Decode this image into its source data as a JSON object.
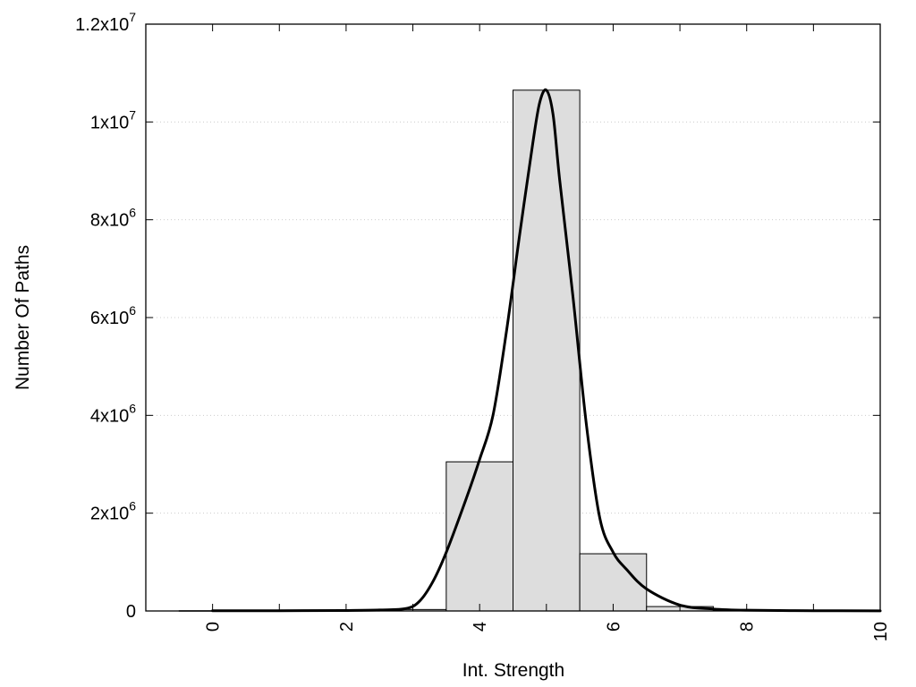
{
  "chart_data": {
    "type": "bar",
    "title": "",
    "xlabel": "Int. Strength",
    "ylabel": "Number Of Paths",
    "xlim": [
      -1,
      10
    ],
    "ylim": [
      0,
      12000000
    ],
    "grid": {
      "y": true,
      "x": false
    },
    "x_ticks": [
      {
        "value": 0,
        "label": "0"
      },
      {
        "value": 2,
        "label": "2"
      },
      {
        "value": 4,
        "label": "4"
      },
      {
        "value": 6,
        "label": "6"
      },
      {
        "value": 8,
        "label": "8"
      },
      {
        "value": 10,
        "label": "10"
      }
    ],
    "y_ticks": [
      {
        "value": 0,
        "base": "0",
        "exp": ""
      },
      {
        "value": 2000000,
        "base": "2x10",
        "exp": "6"
      },
      {
        "value": 4000000,
        "base": "4x10",
        "exp": "6"
      },
      {
        "value": 6000000,
        "base": "6x10",
        "exp": "6"
      },
      {
        "value": 8000000,
        "base": "8x10",
        "exp": "6"
      },
      {
        "value": 10000000,
        "base": "1x10",
        "exp": "7"
      },
      {
        "value": 12000000,
        "base": "1.2x10",
        "exp": "7"
      }
    ],
    "bar_width": 1,
    "bars": [
      {
        "x": 0,
        "value": 5000
      },
      {
        "x": 1,
        "value": 5000
      },
      {
        "x": 2,
        "value": 8000
      },
      {
        "x": 3,
        "value": 30000
      },
      {
        "x": 4,
        "value": 3050000
      },
      {
        "x": 5,
        "value": 10650000
      },
      {
        "x": 6,
        "value": 1170000
      },
      {
        "x": 7,
        "value": 90000
      },
      {
        "x": 8,
        "value": 15000
      },
      {
        "x": 9,
        "value": 5000
      }
    ],
    "fit_curve": {
      "x": [
        0,
        1,
        2,
        2.5,
        2.9,
        3.1,
        3.3,
        3.5,
        3.8,
        4.0,
        4.2,
        4.4,
        4.6,
        4.8,
        4.9,
        5.0,
        5.1,
        5.2,
        5.4,
        5.6,
        5.8,
        6.0,
        6.2,
        6.5,
        7.0,
        7.5,
        8.0,
        9.0,
        10.0
      ],
      "y": [
        5000,
        5000,
        10000,
        20000,
        50000,
        200000,
        600000,
        1200000,
        2300000,
        3100000,
        4000000,
        5700000,
        7700000,
        9600000,
        10400000,
        10650000,
        10150000,
        8800000,
        6400000,
        3800000,
        1900000,
        1200000,
        850000,
        450000,
        120000,
        40000,
        15000,
        5000,
        3000
      ]
    },
    "colors": {
      "bar_fill": "#dddddd",
      "bar_stroke": "#000000",
      "curve": "#000000",
      "grid": "#cccccc"
    }
  }
}
